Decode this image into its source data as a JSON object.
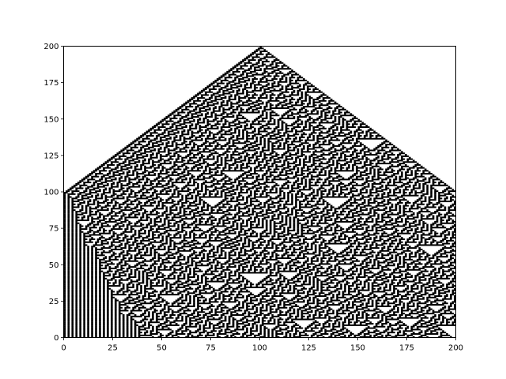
{
  "chart_data": {
    "type": "heatmap",
    "description_rule": "Elementary cellular automaton, Rule 30, started from a single black cell at x=100; each row is one generation, drawn with generation 0 at the top (y=200) and later generations below.",
    "rule": 30,
    "width_cells": 200,
    "generations": 200,
    "seed_column": 100,
    "xlim": [
      0,
      200
    ],
    "ylim": [
      0,
      200
    ],
    "x_ticks": [
      0,
      25,
      50,
      75,
      100,
      125,
      150,
      175,
      200
    ],
    "y_ticks": [
      0,
      25,
      50,
      75,
      100,
      125,
      150,
      175,
      200
    ],
    "x_tick_labels": [
      "0",
      "25",
      "50",
      "75",
      "100",
      "125",
      "150",
      "175",
      "200"
    ],
    "y_tick_labels": [
      "0",
      "25",
      "50",
      "75",
      "100",
      "125",
      "150",
      "175",
      "200"
    ],
    "colors": {
      "on": "#000000",
      "off": "#ffffff",
      "axes": "#000000"
    },
    "grid": false,
    "title": "",
    "xlabel": "",
    "ylabel": ""
  }
}
